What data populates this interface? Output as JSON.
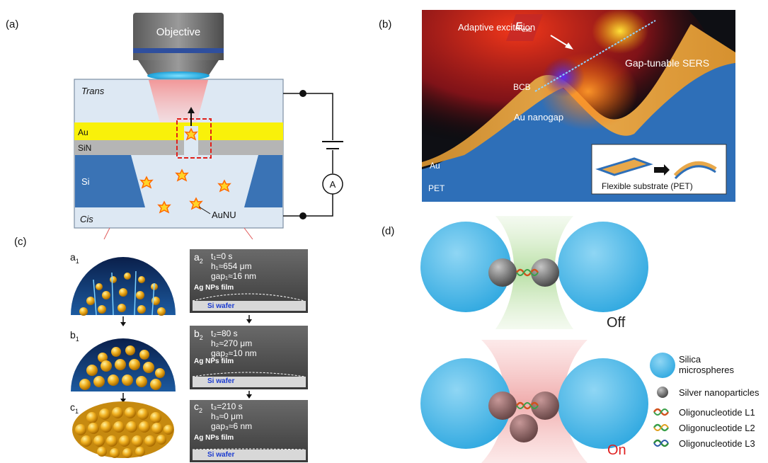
{
  "panels": {
    "a": {
      "label": "(a)",
      "objective": "Objective",
      "trans": "Trans",
      "au": "Au",
      "sin": "SiN",
      "si": "Si",
      "cis": "Cis",
      "aunu": "AuNU",
      "ammeter": "A"
    },
    "b": {
      "label": "(b)",
      "adaptive": "Adaptive excitation",
      "e_main": "E",
      "e_sub": "exc",
      "gap_sers": "Gap-tunable SERS",
      "bcb": "BCB",
      "au_nanogap": "Au nanogap",
      "au": "Au",
      "pet": "PET",
      "flexible": "Flexible substrate (PET)"
    },
    "c": {
      "label": "(c)",
      "rows": [
        {
          "left": "a",
          "left_sub": "1",
          "right": "a",
          "right_sub": "2",
          "t": "t₁=0 s",
          "h": "h₁≈654 μm",
          "gap": "gap₁≈16 nm",
          "film": "Ag NPs film",
          "wafer": "Si wafer"
        },
        {
          "left": "b",
          "left_sub": "1",
          "right": "b",
          "right_sub": "2",
          "t": "t₂=80 s",
          "h": "h₂≈270 μm",
          "gap": "gap₂≈10 nm",
          "film": "Ag NPs film",
          "wafer": "Si wafer"
        },
        {
          "left": "c",
          "left_sub": "1",
          "right": "c",
          "right_sub": "2",
          "t": "t₃=210 s",
          "h": "h₃≈0 μm",
          "gap": "gap₃≈6 nm",
          "film": "Ag NPs film",
          "wafer": "Si wafer"
        }
      ]
    },
    "d": {
      "label": "(d)",
      "off": "Off",
      "on": "On",
      "legend": {
        "silica": "Silica\nmicrospheres",
        "silver": "Silver nanoparticles",
        "l1": "Oligonucleotide L1",
        "l2": "Oligonucleotide L2",
        "l3": "Oligonucleotide L3"
      }
    }
  },
  "colors": {
    "au_yellow": "#f9f10a",
    "sin_gray": "#b5b5b5",
    "si_blue": "#3a73b5",
    "cell_bg": "#dde8f3",
    "silica": "#5bbde8",
    "off_text": "#222222",
    "on_text": "#e02020"
  }
}
